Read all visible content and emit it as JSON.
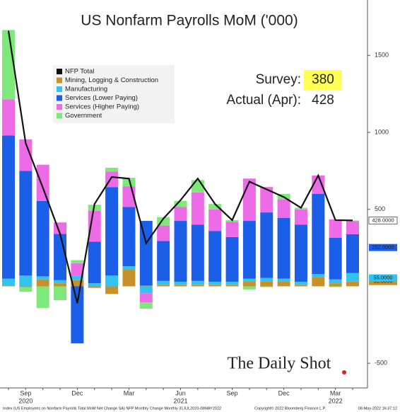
{
  "chart_data": {
    "type": "bar",
    "stacked": true,
    "title": "US Nonfarm Payrolls MoM ('000)",
    "categories": [
      null,
      "Sep",
      null,
      null,
      "Dec",
      null,
      null,
      "Mar",
      null,
      null,
      "Jun",
      null,
      null,
      "Sep",
      null,
      null,
      "Dec",
      null,
      null,
      "Mar",
      null
    ],
    "year_labels": [
      {
        "label": "2020",
        "at": 1
      },
      {
        "label": "2021",
        "at": 10
      },
      {
        "label": "2022",
        "at": 19
      }
    ],
    "series": [
      {
        "name": "NFP Total",
        "type": "line",
        "color": "#111111",
        "values": [
          1660,
          930,
          640,
          340,
          -110,
          535,
          710,
          700,
          280,
          440,
          560,
          700,
          535,
          430,
          680,
          630,
          580,
          510,
          720,
          430,
          428
        ],
        "value_labels": [
          null,
          null,
          null,
          null,
          null,
          null,
          null,
          null,
          null,
          null,
          null,
          null,
          null,
          null,
          null,
          null,
          null,
          null,
          null,
          null,
          "428.0000"
        ]
      },
      {
        "name": "Mining, Logging & Construction",
        "color": "#c8902a",
        "values": [
          5,
          -5,
          45,
          20,
          40,
          -10,
          -50,
          110,
          5,
          10,
          10,
          10,
          10,
          10,
          30,
          30,
          30,
          10,
          60,
          20,
          31
        ],
        "value_labels": [
          null,
          null,
          null,
          null,
          null,
          null,
          null,
          null,
          null,
          null,
          null,
          null,
          null,
          null,
          null,
          null,
          null,
          null,
          null,
          null,
          "31.0000"
        ]
      },
      {
        "name": "Manufacturing",
        "color": "#33c3f0",
        "values": [
          45,
          70,
          20,
          20,
          30,
          20,
          70,
          20,
          -45,
          25,
          20,
          25,
          20,
          20,
          20,
          25,
          20,
          20,
          20,
          25,
          55
        ],
        "value_labels": [
          null,
          null,
          null,
          null,
          null,
          null,
          null,
          null,
          null,
          null,
          null,
          null,
          null,
          null,
          null,
          null,
          null,
          null,
          null,
          null,
          "55.0000"
        ]
      },
      {
        "name": "Services (Lower Paying)",
        "color": "#1b5ee8",
        "values": [
          930,
          680,
          490,
          300,
          -370,
          270,
          575,
          385,
          420,
          260,
          395,
          365,
          330,
          290,
          375,
          425,
          395,
          370,
          520,
          270,
          252
        ],
        "value_labels": [
          null,
          null,
          null,
          null,
          null,
          null,
          null,
          null,
          null,
          null,
          null,
          null,
          null,
          null,
          null,
          null,
          null,
          null,
          null,
          null,
          "252.0000"
        ]
      },
      {
        "name": "Services (Higher Paying)",
        "color": "#ee6be8",
        "values": [
          235,
          205,
          235,
          75,
          80,
          200,
          100,
          135,
          -60,
          100,
          90,
          210,
          140,
          100,
          275,
          165,
          120,
          100,
          120,
          120,
          85
        ]
      },
      {
        "name": "Government",
        "color": "#7ee87a",
        "values": [
          450,
          -30,
          -140,
          -90,
          20,
          40,
          25,
          55,
          -40,
          55,
          40,
          80,
          35,
          10,
          -20,
          -5,
          35,
          10,
          0,
          -5,
          5
        ]
      }
    ],
    "ylim": [
      -660,
      1860
    ],
    "yticks": [
      -500,
      500,
      1000,
      1500
    ],
    "survey_label": "Survey:",
    "survey_value": 380,
    "actual_label": "Actual (Apr):",
    "actual_value": 428,
    "watermark": "The Daily Shot",
    "footer": [
      "Index (US Employees on Nonfarm Payrolls Total MoM Net Change SA) NFP Monthly Change  Monthly 31JUL2020-08MAY2022",
      "Copyright© 2022 Bloomberg Finance L.P.",
      "08-May-2022 16:37:12"
    ]
  }
}
